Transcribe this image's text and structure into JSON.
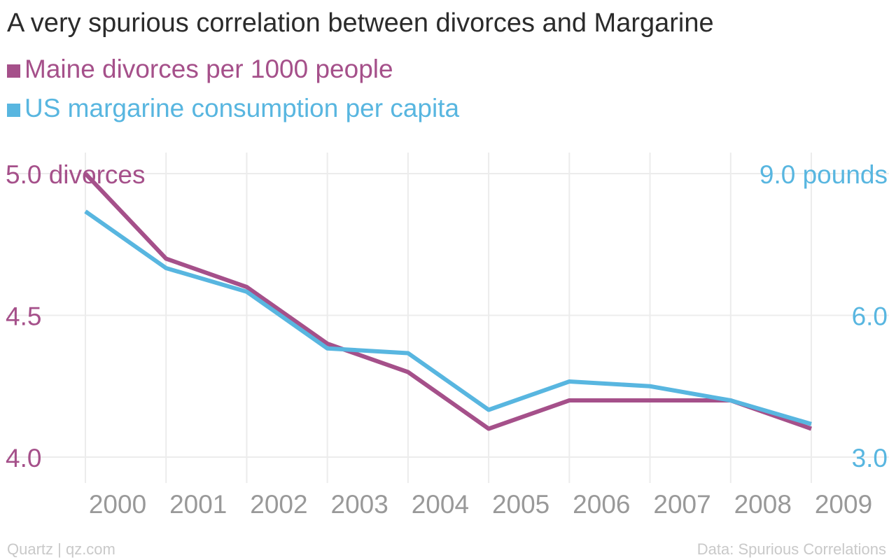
{
  "title": "A very spurious correlation between divorces and Margarine",
  "footer": {
    "credit": "Quartz | qz.com",
    "source": "Data: Spurious Correlations"
  },
  "colors": {
    "divorces": "#a5508a",
    "margarine": "#58b6e0",
    "grid": "#ececec",
    "tick": "#999999"
  },
  "chart_data": {
    "type": "line",
    "title": "A very spurious correlation between divorces and Margarine",
    "legend_position": "top-left",
    "grid": true,
    "x": [
      "2000",
      "2001",
      "2002",
      "2003",
      "2004",
      "2005",
      "2006",
      "2007",
      "2008",
      "2009"
    ],
    "series": [
      {
        "name": "Maine divorces per 1000 people",
        "axis": "left",
        "values": [
          5.0,
          4.7,
          4.6,
          4.4,
          4.3,
          4.1,
          4.2,
          4.2,
          4.2,
          4.1
        ]
      },
      {
        "name": "US margarine consumption per capita",
        "axis": "right",
        "values": [
          8.2,
          7.0,
          6.5,
          5.3,
          5.2,
          4.0,
          4.6,
          4.5,
          4.2,
          3.7
        ]
      }
    ],
    "y_left": {
      "ylim": [
        4.0,
        5.0
      ],
      "ticks": [
        {
          "value": 5.0,
          "label": "5.0 divorces"
        },
        {
          "value": 4.5,
          "label": "4.5"
        },
        {
          "value": 4.0,
          "label": "4.0"
        }
      ]
    },
    "y_right": {
      "ylim": [
        3.0,
        9.0
      ],
      "ticks": [
        {
          "value": 9.0,
          "label": "9.0 pounds"
        },
        {
          "value": 6.0,
          "label": "6.0"
        },
        {
          "value": 3.0,
          "label": "3.0"
        }
      ]
    }
  }
}
